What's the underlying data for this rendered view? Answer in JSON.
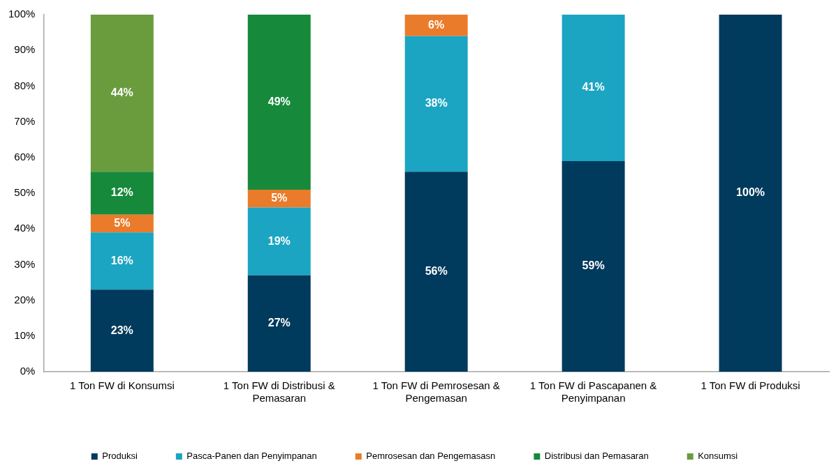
{
  "chart_data": {
    "type": "bar",
    "stacked": true,
    "categories": [
      "1 Ton FW di Konsumsi",
      "1 Ton FW di Distribusi & Pemasaran",
      "1 Ton FW di Pemrosesan & Pengemasan",
      "1 Ton FW di Pascapanen & Penyimpanan",
      "1 Ton FW di Produksi"
    ],
    "series": [
      {
        "name": "Produksi",
        "color": "#003a5d",
        "values": [
          23,
          27,
          56,
          59,
          100
        ],
        "value_labels": [
          "23%",
          "27%",
          "56%",
          "59%",
          "100%"
        ]
      },
      {
        "name": "Pasca-Panen dan Penyimpanan",
        "color": "#1ba5c2",
        "values": [
          16,
          19,
          38,
          41,
          null
        ],
        "value_labels": [
          "16%",
          "19%",
          "38%",
          "41%",
          null
        ]
      },
      {
        "name": "Pemrosesan dan Pengemasasn",
        "color": "#ea7b2b",
        "values": [
          5,
          5,
          6,
          null,
          null
        ],
        "value_labels": [
          "5%",
          "5%",
          "6%",
          null,
          null
        ]
      },
      {
        "name": "Distribusi dan Pemasaran",
        "color": "#168a3a",
        "values": [
          12,
          49,
          null,
          null,
          null
        ],
        "value_labels": [
          "12%",
          "49%",
          null,
          null,
          null
        ]
      },
      {
        "name": "Konsumsi",
        "color": "#6a9c3e",
        "values": [
          44,
          null,
          null,
          null,
          null
        ],
        "value_labels": [
          "44%",
          null,
          null,
          null,
          null
        ]
      }
    ],
    "ylim": [
      0,
      100
    ],
    "yticks": [
      {
        "value": 0,
        "label": "0%"
      },
      {
        "value": 10,
        "label": "10%"
      },
      {
        "value": 20,
        "label": "20%"
      },
      {
        "value": 30,
        "label": "30%"
      },
      {
        "value": 40,
        "label": "40%"
      },
      {
        "value": 50,
        "label": "50%"
      },
      {
        "value": 60,
        "label": "60%"
      },
      {
        "value": 70,
        "label": "70%"
      },
      {
        "value": 80,
        "label": "80%"
      },
      {
        "value": 90,
        "label": "90%"
      },
      {
        "value": 100,
        "label": "100%"
      }
    ],
    "grid": false,
    "legend": "bottom"
  }
}
